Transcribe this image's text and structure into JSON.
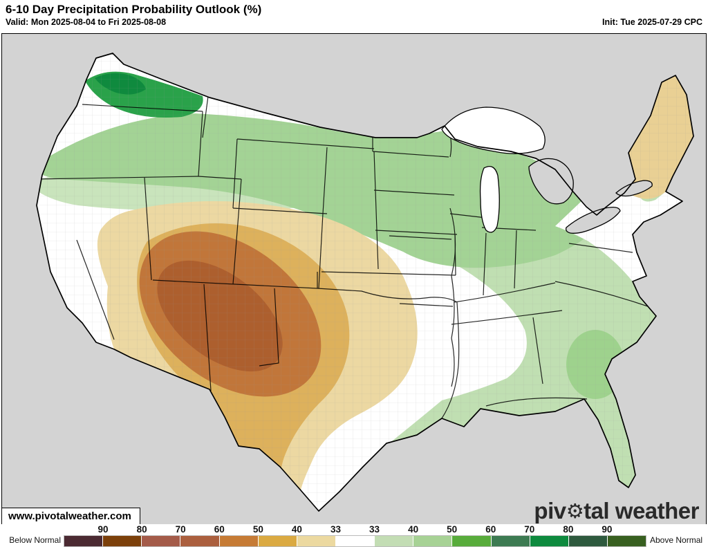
{
  "header": {
    "title": "6-10 Day Precipitation Probability Outlook (%)",
    "valid": "Valid: Mon 2025-08-04 to Fri 2025-08-08",
    "init": "Init: Tue 2025-07-29 CPC"
  },
  "map": {
    "watermark": "www.pivotalweather.com",
    "logo_pre": "piv",
    "logo_gear": "⚙",
    "logo_post": "tal weather"
  },
  "map_colors": {
    "ocean_land_outside_us": "#d3d3d3",
    "near_normal_land": "#ffffff",
    "lake_gray": "#d3d3d3",
    "lake_white": "#ffffff",
    "above_33": "#c0dfb2",
    "above_33_fringe": "#c9e4bc",
    "above_40": "#a3d395",
    "above_40_southeast": "#9ed28d",
    "above_50_washington": "#2aa24a",
    "above_60_washington": "#0f8a3e",
    "below_33": "#ecd8a2",
    "below_33_northeast": "#e9d094",
    "below_40": "#ddb15c",
    "below_50": "#c1763a",
    "below_60": "#ad5f2e",
    "border_black": "#000000",
    "county_gray": "#999999"
  },
  "legend": {
    "below_label": "Below Normal",
    "above_label": "Above Normal",
    "below_ticks": [
      "90",
      "80",
      "70",
      "60",
      "50",
      "40",
      "33"
    ],
    "above_ticks": [
      "33",
      "40",
      "50",
      "60",
      "70",
      "80",
      "90"
    ],
    "below_colors": [
      "#4b2a32",
      "#7c400a",
      "#a45b49",
      "#ab5f3e",
      "#c67b35",
      "#dbaa42",
      "#ecd9a0"
    ],
    "neutral_color": "#ffffff",
    "above_colors": [
      "#c3ddb4",
      "#a7d295",
      "#58ac3b",
      "#3d7b52",
      "#0e8a3e",
      "#2e5a3e",
      "#386020"
    ]
  }
}
